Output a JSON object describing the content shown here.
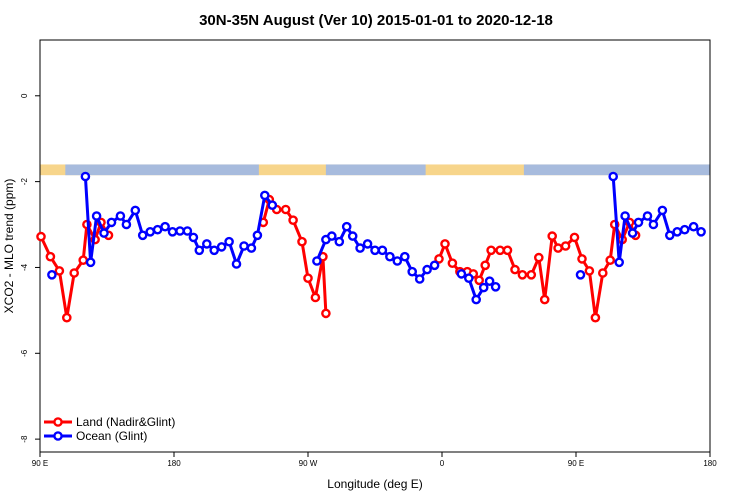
{
  "chart_data": {
    "type": "line",
    "title": "30N-35N August (Ver 10)   2015-01-01 to 2020-12-18",
    "xlabel": "Longitude (deg E)",
    "ylabel": "XCO2 - MLO trend (ppm)",
    "xlim": [
      90,
      540
    ],
    "ylim": [
      -8.3,
      1.3
    ],
    "x_ticks": [
      {
        "value": 90,
        "label": "90 E"
      },
      {
        "value": 180,
        "label": "180"
      },
      {
        "value": 270,
        "label": "90 W"
      },
      {
        "value": 360,
        "label": "0"
      },
      {
        "value": 450,
        "label": "90 E"
      },
      {
        "value": 540,
        "label": "180"
      }
    ],
    "y_ticks": [
      {
        "value": 0,
        "label": "0"
      },
      {
        "value": -2,
        "label": "-2"
      },
      {
        "value": -4,
        "label": "-4"
      },
      {
        "value": -6,
        "label": "-6"
      },
      {
        "value": -8,
        "label": "-8"
      }
    ],
    "surface_band": {
      "y_top": -1.6,
      "y_bottom": -1.85,
      "land_color": "#F7D58B",
      "ocean_color": "#A7BBDD",
      "ocean_ranges": [
        [
          107,
          237
        ],
        [
          282,
          349
        ],
        [
          415,
          547
        ]
      ]
    },
    "legend": {
      "position": "bottom-left",
      "entries": [
        {
          "label": "Land (Nadir&Glint)",
          "color": "#FF0000"
        },
        {
          "label": "Ocean (Glint)",
          "color": "#0000FF"
        }
      ]
    },
    "series": [
      {
        "name": "Land (Nadir&Glint)",
        "color": "#FF0000",
        "points": [
          [
            90.7,
            -3.28
          ],
          [
            97,
            -3.75
          ],
          [
            103,
            -4.08
          ],
          [
            108,
            -5.17
          ],
          [
            113,
            -4.13
          ],
          [
            119,
            -3.83
          ],
          [
            121.5,
            -3.0
          ],
          [
            127,
            -3.35
          ],
          [
            131,
            -2.95
          ],
          [
            136,
            -3.25
          ],
          null,
          [
            240,
            -2.95
          ],
          [
            244,
            -2.42
          ],
          [
            249,
            -2.65
          ],
          [
            255,
            -2.65
          ],
          [
            260,
            -2.9
          ],
          [
            266,
            -3.4
          ],
          [
            270,
            -4.25
          ],
          [
            275,
            -4.7
          ],
          [
            280,
            -3.75
          ],
          [
            282,
            -5.07
          ],
          null,
          [
            358,
            -3.8
          ],
          [
            362,
            -3.45
          ],
          [
            367,
            -3.9
          ],
          [
            372,
            -4.1
          ],
          [
            377,
            -4.1
          ],
          [
            381,
            -4.15
          ],
          [
            385,
            -4.3
          ],
          [
            389,
            -3.95
          ],
          [
            393,
            -3.6
          ],
          [
            399,
            -3.6
          ],
          [
            404,
            -3.6
          ],
          [
            409,
            -4.05
          ],
          [
            414,
            -4.17
          ],
          [
            420,
            -4.17
          ],
          [
            425,
            -3.77
          ],
          [
            429,
            -4.75
          ],
          [
            434,
            -3.27
          ],
          [
            438,
            -3.55
          ],
          [
            443,
            -3.5
          ],
          [
            449,
            -3.3
          ],
          [
            454,
            -3.8
          ],
          [
            459,
            -4.08
          ],
          [
            463,
            -5.17
          ],
          [
            468,
            -4.13
          ],
          [
            473,
            -3.83
          ],
          [
            476,
            -3.0
          ],
          [
            481,
            -3.35
          ],
          [
            486,
            -2.95
          ],
          [
            490,
            -3.25
          ]
        ]
      },
      {
        "name": "Ocean (Glint)",
        "color": "#0000FF",
        "points": [
          [
            98,
            -4.17
          ],
          null,
          [
            120.5,
            -1.88
          ],
          [
            124,
            -3.88
          ],
          [
            128,
            -2.8
          ],
          [
            133,
            -3.2
          ],
          [
            138,
            -2.95
          ],
          [
            144,
            -2.8
          ],
          [
            148,
            -3.0
          ],
          [
            154,
            -2.67
          ],
          [
            159,
            -3.25
          ],
          [
            164,
            -3.17
          ],
          [
            169,
            -3.12
          ],
          [
            174,
            -3.05
          ],
          [
            179,
            -3.17
          ],
          [
            184,
            -3.15
          ],
          [
            189,
            -3.15
          ],
          [
            193,
            -3.3
          ],
          [
            197,
            -3.6
          ],
          [
            202,
            -3.45
          ],
          [
            207,
            -3.6
          ],
          [
            212,
            -3.52
          ],
          [
            217,
            -3.4
          ],
          [
            222,
            -3.92
          ],
          [
            227,
            -3.5
          ],
          [
            232,
            -3.55
          ],
          [
            236,
            -3.25
          ],
          [
            241,
            -2.32
          ],
          [
            246,
            -2.55
          ],
          null,
          [
            276,
            -3.85
          ],
          [
            282,
            -3.35
          ],
          [
            286,
            -3.27
          ],
          [
            291,
            -3.4
          ],
          [
            296,
            -3.05
          ],
          [
            300,
            -3.27
          ],
          [
            305,
            -3.55
          ],
          [
            310,
            -3.45
          ],
          [
            315,
            -3.6
          ],
          [
            320,
            -3.6
          ],
          [
            325,
            -3.75
          ],
          [
            330,
            -3.85
          ],
          [
            335,
            -3.75
          ],
          [
            340,
            -4.1
          ],
          [
            345,
            -4.27
          ],
          [
            350,
            -4.05
          ],
          [
            355,
            -3.95
          ],
          null,
          [
            373,
            -4.15
          ],
          [
            378,
            -4.25
          ],
          [
            383,
            -4.75
          ],
          [
            388,
            -4.47
          ],
          [
            392,
            -4.32
          ],
          [
            396,
            -4.45
          ],
          null,
          [
            453,
            -4.17
          ],
          null,
          [
            475,
            -1.88
          ],
          [
            479,
            -3.88
          ],
          [
            483,
            -2.8
          ],
          [
            488,
            -3.2
          ],
          [
            492,
            -2.95
          ],
          [
            498,
            -2.8
          ],
          [
            502,
            -3.0
          ],
          [
            508,
            -2.67
          ],
          [
            513,
            -3.25
          ],
          [
            518,
            -3.17
          ],
          [
            523,
            -3.12
          ],
          [
            529,
            -3.05
          ],
          [
            534,
            -3.17
          ]
        ]
      }
    ]
  }
}
